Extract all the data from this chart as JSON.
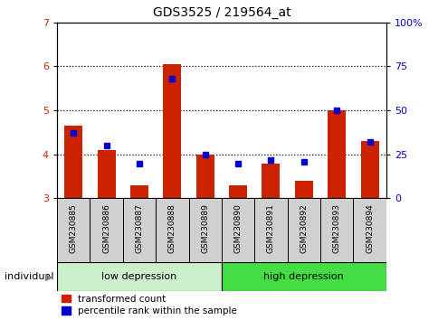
{
  "title": "GDS3525 / 219564_at",
  "samples": [
    "GSM230885",
    "GSM230886",
    "GSM230887",
    "GSM230888",
    "GSM230889",
    "GSM230890",
    "GSM230891",
    "GSM230892",
    "GSM230893",
    "GSM230894"
  ],
  "red_values": [
    4.65,
    4.1,
    3.3,
    6.05,
    4.0,
    3.3,
    3.8,
    3.4,
    5.0,
    4.3
  ],
  "blue_values": [
    37,
    30,
    20,
    68,
    25,
    20,
    22,
    21,
    50,
    32
  ],
  "ylim_left": [
    3,
    7
  ],
  "ylim_right": [
    0,
    100
  ],
  "yticks_left": [
    3,
    4,
    5,
    6,
    7
  ],
  "yticks_right": [
    0,
    25,
    50,
    75,
    100
  ],
  "yticklabels_right": [
    "0",
    "25",
    "50",
    "75",
    "100%"
  ],
  "red_color": "#cc2200",
  "blue_color": "#0000cc",
  "bar_width": 0.55,
  "baseline": 3,
  "legend_red": "transformed count",
  "legend_blue": "percentile rank within the sample",
  "individual_label": "individual",
  "background_bar": "#d0d0d0",
  "group_low_color": "#ccf0cc",
  "group_high_color": "#44dd44",
  "group_border": "black",
  "n_low": 5,
  "n_high": 5,
  "group_low_label": "low depression",
  "group_high_label": "high depression"
}
